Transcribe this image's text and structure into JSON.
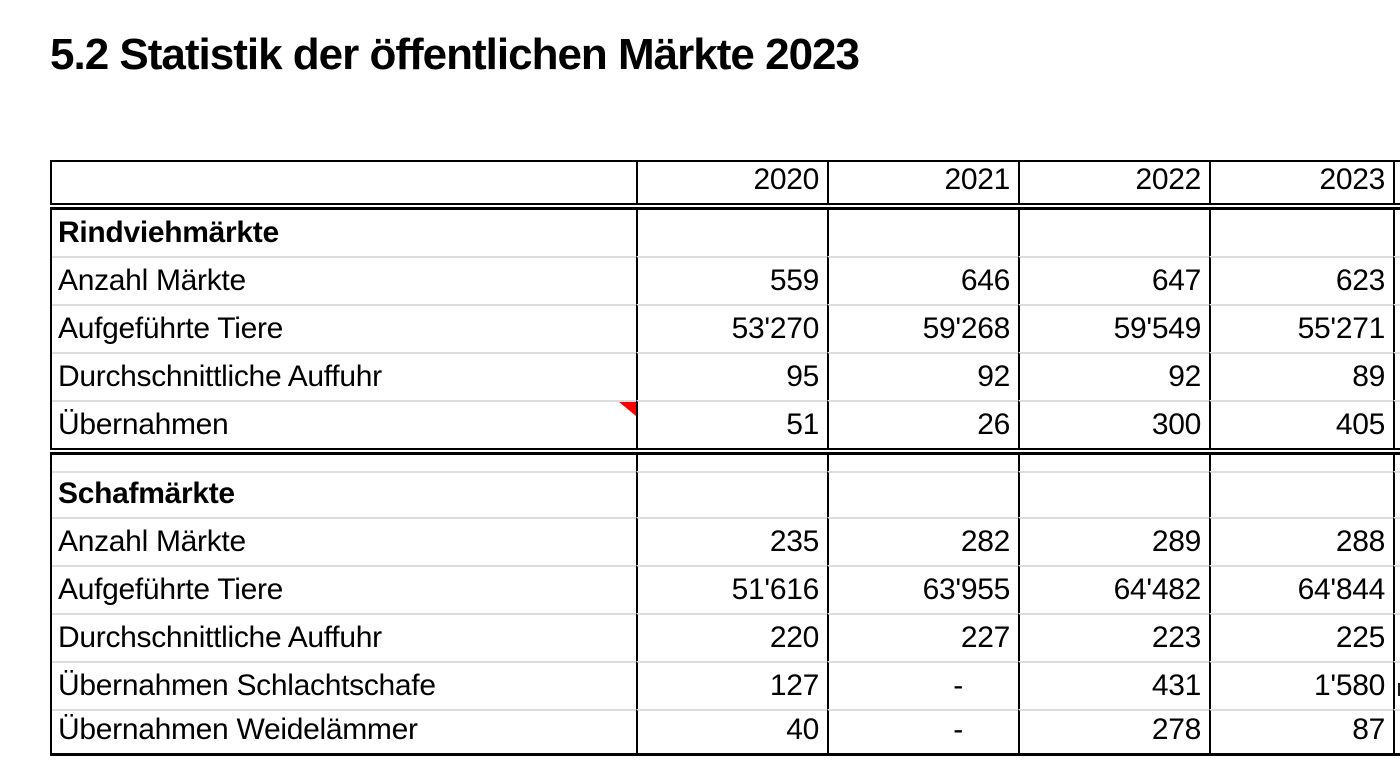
{
  "page": {
    "title": "5.2 Statistik der öffentlichen Märkte 2023"
  },
  "table": {
    "years": [
      "2020",
      "2021",
      "2022",
      "2023"
    ],
    "sections": [
      {
        "heading": "Rindviehmärkte",
        "rows": [
          {
            "label": "Anzahl Märkte",
            "values": [
              "559",
              "646",
              "647",
              "623"
            ]
          },
          {
            "label": "Aufgeführte Tiere",
            "values": [
              "53'270",
              "59'268",
              "59'549",
              "55'271"
            ]
          },
          {
            "label": "Durchschnittliche Auffuhr",
            "values": [
              "95",
              "92",
              "92",
              "89"
            ]
          },
          {
            "label": "Übernahmen",
            "values": [
              "51",
              "26",
              "300",
              "405"
            ],
            "has_comment_marker": true
          }
        ]
      },
      {
        "heading": "Schafmärkte",
        "rows": [
          {
            "label": "Anzahl Märkte",
            "values": [
              "235",
              "282",
              "289",
              "288"
            ]
          },
          {
            "label": "Aufgeführte Tiere",
            "values": [
              "51'616",
              "63'955",
              "64'482",
              "64'844"
            ]
          },
          {
            "label": "Durchschnittliche Auffuhr",
            "values": [
              "220",
              "227",
              "223",
              "225"
            ]
          },
          {
            "label": "Übernahmen Schlachtschafe",
            "values": [
              "127",
              "-",
              "431",
              "1'580"
            ]
          },
          {
            "label": "Übernahmen Weidelämmer",
            "values": [
              "40",
              "-",
              "278",
              "87"
            ]
          }
        ]
      }
    ],
    "colors": {
      "comment_marker": "#ff0000",
      "grid_line": "#dddddd",
      "border": "#000000"
    }
  }
}
